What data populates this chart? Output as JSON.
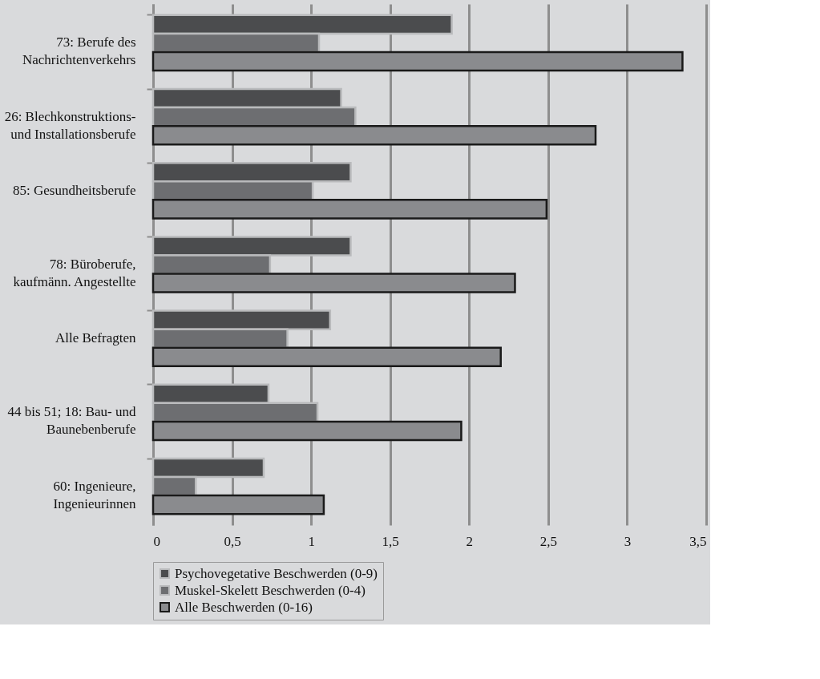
{
  "chart_data": {
    "type": "bar",
    "orientation": "horizontal",
    "categories": [
      "73: Berufe des Nachrichtenverkehrs",
      "26: Blechkonstruktions- und Installationsberufe",
      "85: Gesundheitsberufe",
      "78: Büroberufe, kaufmänn. Angestellte",
      "Alle Befragten",
      "44 bis 51; 18: Bau- und Baunebenberufe",
      "60: Ingenieure, Ingenieurinnen"
    ],
    "series": [
      {
        "name": "Psychovegetative Beschwerden (0-9)",
        "color": "#4b4c4e",
        "values": [
          1.89,
          1.19,
          1.25,
          1.25,
          1.12,
          0.73,
          0.7
        ]
      },
      {
        "name": "Muskel-Skelett Beschwerden (0-4)",
        "color": "#6d6e71",
        "values": [
          1.05,
          1.28,
          1.01,
          0.74,
          0.85,
          1.04,
          0.27
        ]
      },
      {
        "name": "Alle Beschwerden (0-16)",
        "color": "#8a8b8e",
        "values": [
          3.35,
          2.8,
          2.49,
          2.29,
          2.2,
          1.95,
          1.08
        ]
      }
    ],
    "xlim": [
      0,
      3.5
    ],
    "xticks": [
      0,
      {
        "value": 0.5,
        "label": "0,5"
      },
      1,
      {
        "value": 1.5,
        "label": "1,5"
      },
      2,
      {
        "value": 2.5,
        "label": "2,5"
      },
      3,
      {
        "value": 3.5,
        "label": "3,5"
      }
    ],
    "grid": "x",
    "legend": "bottom"
  }
}
